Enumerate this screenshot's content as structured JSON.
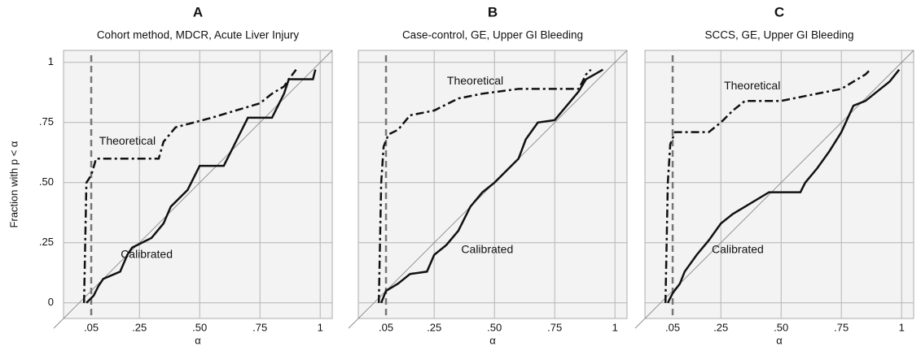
{
  "chart_data": [
    {
      "type": "line",
      "title": "A",
      "subtitle": "Cohort method, MDCR, Acute Liver Injury",
      "xlabel": "α",
      "ylabel": "Fraction with p < α",
      "xlim": [
        -0.065,
        1.05
      ],
      "ylim": [
        -0.065,
        1.05
      ],
      "xticks": [
        {
          "value": 0.05,
          "label": ".05"
        },
        {
          "value": 0.25,
          "label": ".25"
        },
        {
          "value": 0.5,
          "label": ".50"
        },
        {
          "value": 0.75,
          "label": ".75"
        },
        1
      ],
      "yticks": [
        0,
        {
          "value": 0.25,
          "label": ".25"
        },
        {
          "value": 0.5,
          "label": ".50"
        },
        {
          "value": 0.75,
          "label": ".75"
        },
        1
      ],
      "grid": true,
      "vline": 0.05,
      "series": [
        {
          "name": "Theoretical",
          "color": "#111111",
          "x": [
            0.02,
            0.03,
            0.05,
            0.07,
            0.33,
            0.35,
            0.4,
            0.55,
            0.65,
            0.75,
            0.8,
            0.85,
            0.87,
            0.9
          ],
          "values": [
            0,
            0.5,
            0.53,
            0.6,
            0.6,
            0.67,
            0.73,
            0.77,
            0.8,
            0.83,
            0.87,
            0.9,
            0.93,
            0.97
          ]
        },
        {
          "name": "Calibrated",
          "color": "#111111",
          "x": [
            0.03,
            0.06,
            0.08,
            0.1,
            0.17,
            0.2,
            0.22,
            0.3,
            0.35,
            0.38,
            0.45,
            0.5,
            0.6,
            0.65,
            0.7,
            0.8,
            0.85,
            0.87,
            0.97,
            0.98
          ],
          "values": [
            0,
            0.03,
            0.07,
            0.1,
            0.13,
            0.2,
            0.23,
            0.27,
            0.33,
            0.4,
            0.47,
            0.57,
            0.57,
            0.67,
            0.77,
            0.77,
            0.87,
            0.93,
            0.93,
            0.97
          ]
        }
      ]
    },
    {
      "type": "line",
      "title": "B",
      "subtitle": "Case-control, GE, Upper GI Bleeding",
      "xlabel": "α",
      "xlim": [
        -0.065,
        1.05
      ],
      "ylim": [
        -0.065,
        1.05
      ],
      "xticks": [
        {
          "value": 0.05,
          "label": ".05"
        },
        {
          "value": 0.25,
          "label": ".25"
        },
        {
          "value": 0.5,
          "label": ".50"
        },
        {
          "value": 0.75,
          "label": ".75"
        },
        1
      ],
      "grid": true,
      "vline": 0.05,
      "series": [
        {
          "name": "Theoretical",
          "color": "#111111",
          "x": [
            0.02,
            0.03,
            0.04,
            0.06,
            0.1,
            0.15,
            0.25,
            0.35,
            0.45,
            0.6,
            0.85,
            0.88,
            0.9
          ],
          "values": [
            0,
            0.5,
            0.65,
            0.7,
            0.72,
            0.78,
            0.8,
            0.85,
            0.87,
            0.89,
            0.89,
            0.95,
            0.97
          ]
        },
        {
          "name": "Calibrated",
          "color": "#111111",
          "x": [
            0.03,
            0.05,
            0.1,
            0.15,
            0.22,
            0.25,
            0.3,
            0.35,
            0.4,
            0.45,
            0.5,
            0.55,
            0.6,
            0.63,
            0.68,
            0.75,
            0.8,
            0.85,
            0.88,
            0.95
          ],
          "values": [
            0,
            0.05,
            0.08,
            0.12,
            0.13,
            0.2,
            0.24,
            0.3,
            0.4,
            0.46,
            0.5,
            0.55,
            0.6,
            0.68,
            0.75,
            0.76,
            0.82,
            0.88,
            0.93,
            0.97
          ]
        }
      ]
    },
    {
      "type": "line",
      "title": "C",
      "subtitle": "SCCS, GE, Upper GI Bleeding",
      "xlabel": "α",
      "xlim": [
        -0.065,
        1.05
      ],
      "ylim": [
        -0.065,
        1.05
      ],
      "xticks": [
        {
          "value": 0.05,
          "label": ".05"
        },
        {
          "value": 0.25,
          "label": ".25"
        },
        {
          "value": 0.5,
          "label": ".50"
        },
        {
          "value": 0.75,
          "label": ".75"
        },
        1
      ],
      "grid": true,
      "vline": 0.05,
      "series": [
        {
          "name": "Theoretical",
          "color": "#111111",
          "x": [
            0.02,
            0.03,
            0.04,
            0.06,
            0.2,
            0.25,
            0.3,
            0.35,
            0.5,
            0.6,
            0.75,
            0.85,
            0.87
          ],
          "values": [
            0,
            0.5,
            0.66,
            0.71,
            0.71,
            0.75,
            0.8,
            0.84,
            0.84,
            0.86,
            0.89,
            0.95,
            0.97
          ]
        },
        {
          "name": "Calibrated",
          "color": "#111111",
          "x": [
            0.03,
            0.05,
            0.08,
            0.1,
            0.15,
            0.2,
            0.25,
            0.3,
            0.35,
            0.45,
            0.58,
            0.6,
            0.65,
            0.7,
            0.75,
            0.8,
            0.85,
            0.9,
            0.95,
            0.99
          ],
          "values": [
            0,
            0.04,
            0.08,
            0.13,
            0.2,
            0.26,
            0.33,
            0.37,
            0.4,
            0.46,
            0.46,
            0.5,
            0.56,
            0.63,
            0.71,
            0.82,
            0.84,
            0.88,
            0.92,
            0.97
          ]
        }
      ]
    }
  ]
}
